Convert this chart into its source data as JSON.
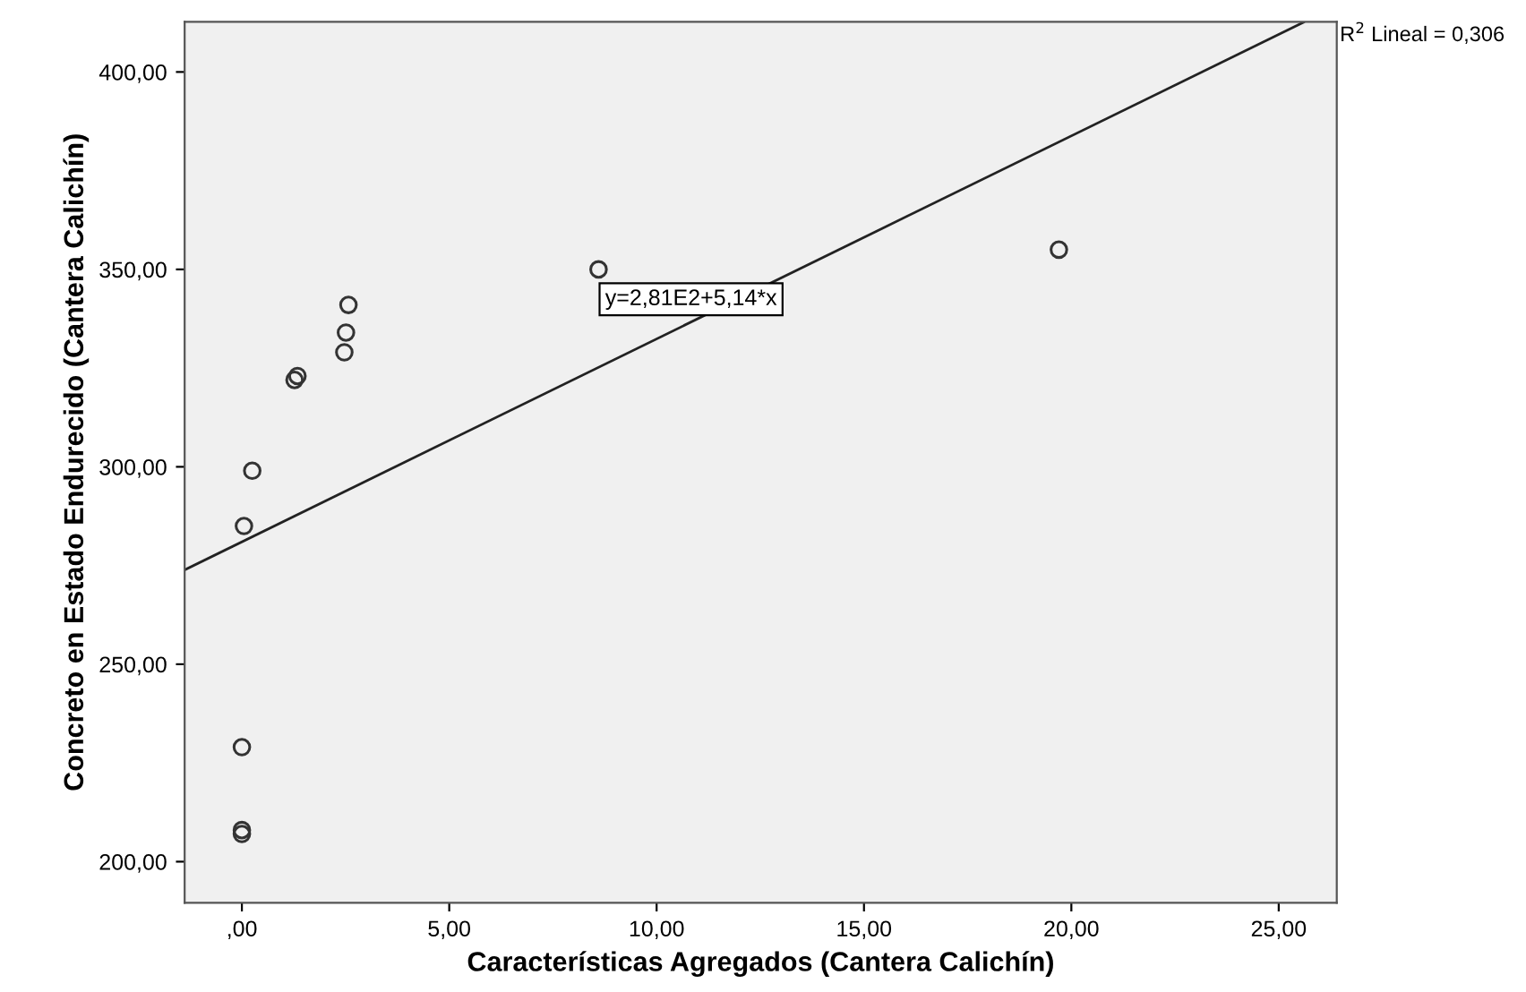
{
  "chart_data": {
    "type": "scatter",
    "xlabel": "Características Agregados (Cantera Calichín)",
    "ylabel": "Concreto en Estado Endurecido (Cantera Calichín)",
    "series": [
      {
        "color": "#333333",
        "x": [
          0.0,
          0.0,
          0.0,
          0.05,
          0.25,
          1.27,
          1.34,
          2.47,
          2.51,
          2.57,
          8.6,
          19.7
        ],
        "values": [
          229,
          208,
          207,
          285,
          299,
          322,
          323,
          329,
          334,
          341,
          350,
          355
        ]
      },
      {
        "type": "line",
        "color": "#222222",
        "marker": "none",
        "x": [
          -1.38,
          25.6
        ],
        "values": [
          273.9,
          412.6
        ]
      }
    ],
    "xlim": [
      -1.38,
      26.4
    ],
    "ylim": [
      189.6,
      412.7
    ],
    "xticks": [
      {
        "value": 0,
        "label": ",00"
      },
      {
        "value": 5,
        "label": "5,00"
      },
      {
        "value": 10,
        "label": "10,00"
      },
      {
        "value": 15,
        "label": "15,00"
      },
      {
        "value": 20,
        "label": "20,00"
      },
      {
        "value": 25,
        "label": "25,00"
      }
    ],
    "yticks": [
      {
        "value": 200,
        "label": "200,00"
      },
      {
        "value": 250,
        "label": "250,00"
      },
      {
        "value": 300,
        "label": "300,00"
      },
      {
        "value": 350,
        "label": "350,00"
      },
      {
        "value": 400,
        "label": "400,00"
      }
    ],
    "marker": "circle",
    "grid": false,
    "legend": false,
    "annotations": [
      "y=2,81E2+5,14*x",
      "R$^{2}$ Lineal = 0,306"
    ]
  }
}
